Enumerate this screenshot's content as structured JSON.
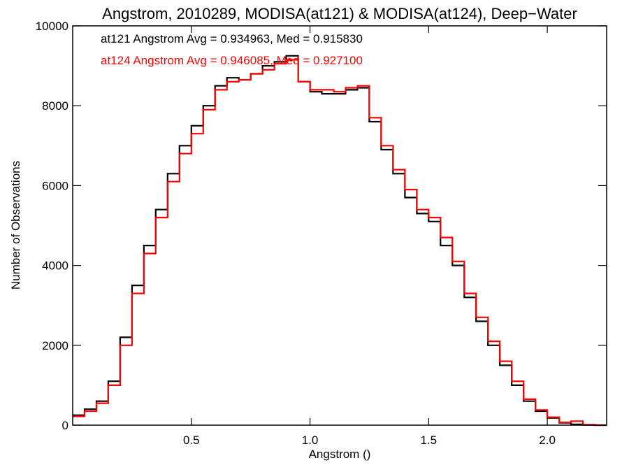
{
  "chart_data": {
    "type": "line",
    "title": "Angstrom, 2010289, MODISA(at121) & MODISA(at124), Deep−Water",
    "xlabel": "Angstrom ()",
    "ylabel": "Number of Observations",
    "xlim": [
      0.0,
      2.25
    ],
    "ylim": [
      0,
      10000
    ],
    "x_ticks": [
      0.5,
      1.0,
      1.5,
      2.0
    ],
    "x_tick_labels": [
      "0.5",
      "1.0",
      "1.5",
      "2.0"
    ],
    "y_ticks": [
      0,
      2000,
      4000,
      6000,
      8000,
      10000
    ],
    "y_tick_labels": [
      "0",
      "2000",
      "4000",
      "6000",
      "8000",
      "10000"
    ],
    "grid": false,
    "annotations": [
      {
        "text": "at121 Angstrom Avg = 0.934963, Med = 0.915830",
        "color": "#000000"
      },
      {
        "text": "at124 Angstrom Avg = 0.946085, Med = 0.927100",
        "color": "#ff0000"
      }
    ],
    "series": [
      {
        "name": "at121",
        "color": "#000000",
        "x": [
          0.0,
          0.05,
          0.1,
          0.15,
          0.2,
          0.25,
          0.3,
          0.35,
          0.4,
          0.45,
          0.5,
          0.55,
          0.6,
          0.65,
          0.7,
          0.75,
          0.8,
          0.85,
          0.9,
          0.95,
          1.0,
          1.05,
          1.1,
          1.15,
          1.2,
          1.25,
          1.3,
          1.35,
          1.4,
          1.45,
          1.5,
          1.55,
          1.6,
          1.65,
          1.7,
          1.75,
          1.8,
          1.85,
          1.9,
          1.95,
          2.0,
          2.05,
          2.1,
          2.15,
          2.2,
          2.25
        ],
        "values": [
          250,
          400,
          600,
          1100,
          2200,
          3500,
          4500,
          5400,
          6300,
          7000,
          7500,
          8000,
          8500,
          8700,
          8650,
          8800,
          9000,
          9100,
          9250,
          8600,
          8350,
          8300,
          8300,
          8400,
          8450,
          7600,
          6900,
          6300,
          5700,
          5300,
          5100,
          4500,
          4000,
          3200,
          2600,
          2000,
          1500,
          1000,
          600,
          350,
          180,
          60,
          20,
          5,
          0,
          0
        ]
      },
      {
        "name": "at124",
        "color": "#ff0000",
        "x": [
          0.0,
          0.05,
          0.1,
          0.15,
          0.2,
          0.25,
          0.3,
          0.35,
          0.4,
          0.45,
          0.5,
          0.55,
          0.6,
          0.65,
          0.7,
          0.75,
          0.8,
          0.85,
          0.9,
          0.95,
          1.0,
          1.05,
          1.1,
          1.15,
          1.2,
          1.25,
          1.3,
          1.35,
          1.4,
          1.45,
          1.5,
          1.55,
          1.6,
          1.65,
          1.7,
          1.75,
          1.8,
          1.85,
          1.9,
          1.95,
          2.0,
          2.05,
          2.1,
          2.15,
          2.2,
          2.25
        ],
        "values": [
          220,
          350,
          550,
          1000,
          2000,
          3300,
          4300,
          5200,
          6100,
          6800,
          7300,
          7900,
          8400,
          8600,
          8650,
          8800,
          8900,
          9050,
          9150,
          8600,
          8400,
          8400,
          8350,
          8450,
          8500,
          7700,
          7000,
          6400,
          5900,
          5400,
          5200,
          4700,
          4100,
          3300,
          2700,
          2100,
          1600,
          1100,
          650,
          380,
          200,
          70,
          100,
          10,
          0,
          0
        ]
      }
    ]
  }
}
